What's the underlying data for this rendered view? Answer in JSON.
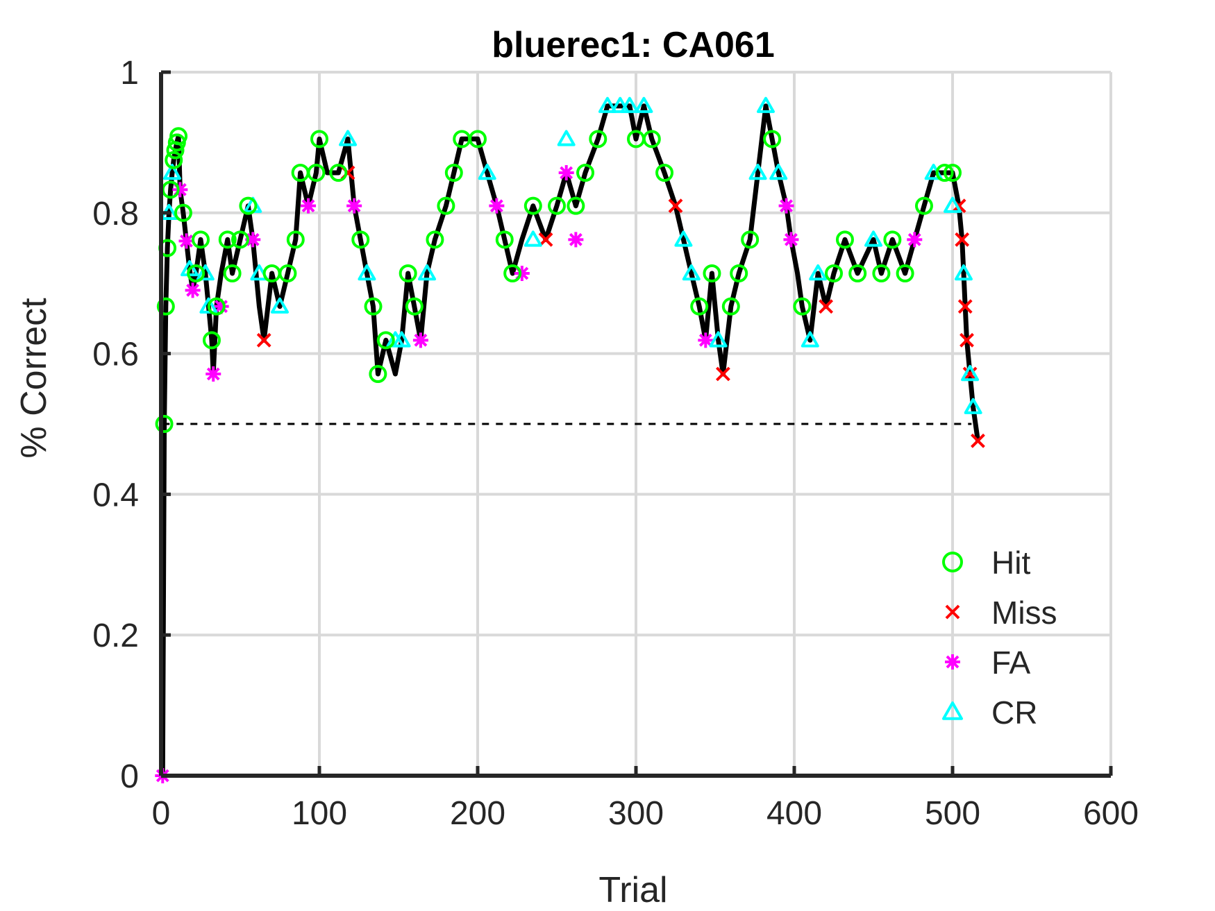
{
  "chart_data": {
    "type": "line",
    "title": "bluerec1: CA061",
    "xlabel": "Trial",
    "ylabel": "% Correct",
    "xlim": [
      0,
      600
    ],
    "ylim": [
      0,
      1
    ],
    "xticks": [
      "0",
      "100",
      "200",
      "300",
      "400",
      "500",
      "600"
    ],
    "yticks": [
      "0",
      "0.2",
      "0.4",
      "0.6",
      "0.8",
      "1"
    ],
    "grid": true,
    "legend_position": "bottom-right",
    "chance_level": 0.5,
    "line_color": "#000000",
    "series": [
      {
        "name": "Hit",
        "marker": "circle",
        "color": "#00ff00"
      },
      {
        "name": "Miss",
        "marker": "x",
        "color": "#ff0000"
      },
      {
        "name": "FA",
        "marker": "asterisk",
        "color": "#ff00ff"
      },
      {
        "name": "CR",
        "marker": "triangle",
        "color": "#00ffff"
      }
    ],
    "curve": [
      [
        1,
        0
      ],
      [
        2,
        0.5
      ],
      [
        3,
        0.667
      ],
      [
        4,
        0.75
      ],
      [
        5,
        0.8
      ],
      [
        6,
        0.833
      ],
      [
        7,
        0.857
      ],
      [
        8,
        0.875
      ],
      [
        9,
        0.889
      ],
      [
        10,
        0.9
      ],
      [
        11,
        0.909
      ],
      [
        12,
        0.833
      ],
      [
        14,
        0.8
      ],
      [
        16,
        0.76
      ],
      [
        18,
        0.72
      ],
      [
        20,
        0.69
      ],
      [
        22,
        0.714
      ],
      [
        25,
        0.762
      ],
      [
        28,
        0.714
      ],
      [
        30,
        0.667
      ],
      [
        32,
        0.619
      ],
      [
        33,
        0.571
      ],
      [
        35,
        0.667
      ],
      [
        38,
        0.714
      ],
      [
        42,
        0.762
      ],
      [
        45,
        0.714
      ],
      [
        50,
        0.762
      ],
      [
        55,
        0.81
      ],
      [
        58,
        0.762
      ],
      [
        62,
        0.667
      ],
      [
        65,
        0.619
      ],
      [
        70,
        0.714
      ],
      [
        75,
        0.667
      ],
      [
        80,
        0.714
      ],
      [
        85,
        0.762
      ],
      [
        88,
        0.857
      ],
      [
        93,
        0.81
      ],
      [
        98,
        0.857
      ],
      [
        100,
        0.905
      ],
      [
        105,
        0.857
      ],
      [
        112,
        0.857
      ],
      [
        118,
        0.905
      ],
      [
        122,
        0.81
      ],
      [
        126,
        0.762
      ],
      [
        130,
        0.714
      ],
      [
        134,
        0.667
      ],
      [
        137,
        0.571
      ],
      [
        142,
        0.619
      ],
      [
        148,
        0.571
      ],
      [
        152,
        0.619
      ],
      [
        156,
        0.714
      ],
      [
        160,
        0.667
      ],
      [
        164,
        0.619
      ],
      [
        168,
        0.714
      ],
      [
        173,
        0.762
      ],
      [
        180,
        0.81
      ],
      [
        185,
        0.857
      ],
      [
        190,
        0.905
      ],
      [
        200,
        0.905
      ],
      [
        206,
        0.857
      ],
      [
        212,
        0.81
      ],
      [
        217,
        0.762
      ],
      [
        222,
        0.714
      ],
      [
        228,
        0.762
      ],
      [
        235,
        0.81
      ],
      [
        243,
        0.762
      ],
      [
        250,
        0.81
      ],
      [
        256,
        0.857
      ],
      [
        262,
        0.81
      ],
      [
        268,
        0.857
      ],
      [
        276,
        0.905
      ],
      [
        282,
        0.952
      ],
      [
        296,
        0.952
      ],
      [
        300,
        0.905
      ],
      [
        305,
        0.952
      ],
      [
        310,
        0.905
      ],
      [
        318,
        0.857
      ],
      [
        325,
        0.81
      ],
      [
        330,
        0.762
      ],
      [
        335,
        0.714
      ],
      [
        340,
        0.667
      ],
      [
        344,
        0.619
      ],
      [
        348,
        0.714
      ],
      [
        352,
        0.619
      ],
      [
        355,
        0.571
      ],
      [
        360,
        0.667
      ],
      [
        365,
        0.714
      ],
      [
        372,
        0.762
      ],
      [
        377,
        0.857
      ],
      [
        382,
        0.952
      ],
      [
        386,
        0.905
      ],
      [
        390,
        0.857
      ],
      [
        395,
        0.81
      ],
      [
        398,
        0.762
      ],
      [
        402,
        0.714
      ],
      [
        405,
        0.667
      ],
      [
        410,
        0.619
      ],
      [
        415,
        0.714
      ],
      [
        420,
        0.667
      ],
      [
        425,
        0.714
      ],
      [
        432,
        0.762
      ],
      [
        440,
        0.714
      ],
      [
        450,
        0.762
      ],
      [
        455,
        0.714
      ],
      [
        462,
        0.762
      ],
      [
        470,
        0.714
      ],
      [
        476,
        0.762
      ],
      [
        482,
        0.81
      ],
      [
        488,
        0.857
      ],
      [
        495,
        0.857
      ],
      [
        500,
        0.857
      ],
      [
        504,
        0.81
      ],
      [
        506,
        0.762
      ],
      [
        507,
        0.714
      ],
      [
        508,
        0.667
      ],
      [
        509,
        0.619
      ],
      [
        511,
        0.571
      ],
      [
        513,
        0.524
      ],
      [
        516,
        0.476
      ]
    ],
    "points": {
      "Hit": [
        [
          2,
          0.5
        ],
        [
          3,
          0.667
        ],
        [
          4,
          0.75
        ],
        [
          6,
          0.833
        ],
        [
          8,
          0.875
        ],
        [
          9,
          0.889
        ],
        [
          10,
          0.9
        ],
        [
          11,
          0.909
        ],
        [
          14,
          0.8
        ],
        [
          22,
          0.714
        ],
        [
          25,
          0.762
        ],
        [
          32,
          0.619
        ],
        [
          35,
          0.667
        ],
        [
          42,
          0.762
        ],
        [
          45,
          0.714
        ],
        [
          50,
          0.762
        ],
        [
          55,
          0.81
        ],
        [
          70,
          0.714
        ],
        [
          80,
          0.714
        ],
        [
          85,
          0.762
        ],
        [
          88,
          0.857
        ],
        [
          98,
          0.857
        ],
        [
          100,
          0.905
        ],
        [
          112,
          0.857
        ],
        [
          126,
          0.762
        ],
        [
          134,
          0.667
        ],
        [
          137,
          0.571
        ],
        [
          142,
          0.619
        ],
        [
          156,
          0.714
        ],
        [
          160,
          0.667
        ],
        [
          173,
          0.762
        ],
        [
          180,
          0.81
        ],
        [
          185,
          0.857
        ],
        [
          190,
          0.905
        ],
        [
          200,
          0.905
        ],
        [
          217,
          0.762
        ],
        [
          222,
          0.714
        ],
        [
          235,
          0.81
        ],
        [
          250,
          0.81
        ],
        [
          262,
          0.81
        ],
        [
          268,
          0.857
        ],
        [
          276,
          0.905
        ],
        [
          300,
          0.905
        ],
        [
          310,
          0.905
        ],
        [
          318,
          0.857
        ],
        [
          340,
          0.667
        ],
        [
          348,
          0.714
        ],
        [
          360,
          0.667
        ],
        [
          365,
          0.714
        ],
        [
          372,
          0.762
        ],
        [
          386,
          0.905
        ],
        [
          405,
          0.667
        ],
        [
          425,
          0.714
        ],
        [
          432,
          0.762
        ],
        [
          440,
          0.714
        ],
        [
          455,
          0.714
        ],
        [
          462,
          0.762
        ],
        [
          470,
          0.714
        ],
        [
          482,
          0.81
        ],
        [
          495,
          0.857
        ],
        [
          500,
          0.857
        ]
      ],
      "Miss": [
        [
          65,
          0.619
        ],
        [
          118,
          0.857
        ],
        [
          243,
          0.762
        ],
        [
          325,
          0.81
        ],
        [
          355,
          0.571
        ],
        [
          420,
          0.667
        ],
        [
          504,
          0.81
        ],
        [
          506,
          0.762
        ],
        [
          508,
          0.667
        ],
        [
          509,
          0.619
        ],
        [
          511,
          0.571
        ],
        [
          516,
          0.476
        ]
      ],
      "FA": [
        [
          1,
          0
        ],
        [
          12,
          0.833
        ],
        [
          16,
          0.76
        ],
        [
          20,
          0.69
        ],
        [
          33,
          0.571
        ],
        [
          38,
          0.667
        ],
        [
          58,
          0.762
        ],
        [
          93,
          0.81
        ],
        [
          122,
          0.81
        ],
        [
          164,
          0.619
        ],
        [
          212,
          0.81
        ],
        [
          228,
          0.714
        ],
        [
          256,
          0.857
        ],
        [
          262,
          0.762
        ],
        [
          344,
          0.619
        ],
        [
          395,
          0.81
        ],
        [
          398,
          0.762
        ],
        [
          476,
          0.762
        ]
      ],
      "CR": [
        [
          5,
          0.8
        ],
        [
          7,
          0.857
        ],
        [
          18,
          0.72
        ],
        [
          28,
          0.714
        ],
        [
          30,
          0.667
        ],
        [
          58,
          0.81
        ],
        [
          62,
          0.714
        ],
        [
          75,
          0.667
        ],
        [
          118,
          0.905
        ],
        [
          130,
          0.714
        ],
        [
          148,
          0.619
        ],
        [
          152,
          0.619
        ],
        [
          168,
          0.714
        ],
        [
          206,
          0.857
        ],
        [
          235,
          0.762
        ],
        [
          256,
          0.905
        ],
        [
          282,
          0.952
        ],
        [
          290,
          0.952
        ],
        [
          296,
          0.952
        ],
        [
          305,
          0.952
        ],
        [
          330,
          0.762
        ],
        [
          335,
          0.714
        ],
        [
          352,
          0.619
        ],
        [
          377,
          0.857
        ],
        [
          382,
          0.952
        ],
        [
          390,
          0.857
        ],
        [
          410,
          0.619
        ],
        [
          415,
          0.714
        ],
        [
          450,
          0.762
        ],
        [
          488,
          0.857
        ],
        [
          500,
          0.81
        ],
        [
          507,
          0.714
        ],
        [
          511,
          0.571
        ],
        [
          513,
          0.524
        ]
      ]
    }
  }
}
